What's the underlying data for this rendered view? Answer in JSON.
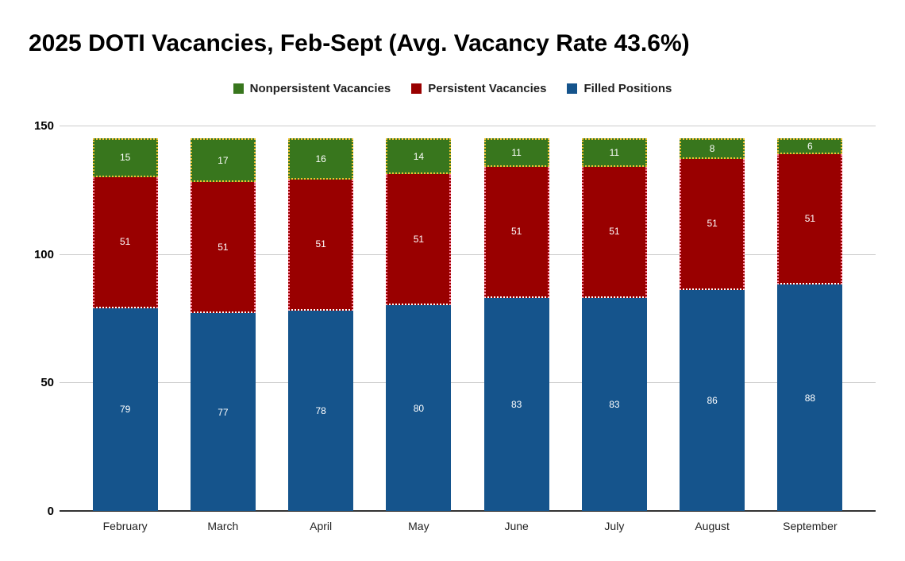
{
  "title": "2025 DOTI Vacancies, Feb-Sept (Avg. Vacancy Rate 43.6%)",
  "legend": {
    "position": "top",
    "items": [
      {
        "label": "Nonpersistent Vacancies",
        "color": "#38761d"
      },
      {
        "label": "Persistent Vacancies",
        "color": "#990000"
      },
      {
        "label": "Filled Positions",
        "color": "#15548c"
      }
    ]
  },
  "chart_data": {
    "type": "bar",
    "stacked": true,
    "title": "2025 DOTI Vacancies, Feb-Sept (Avg. Vacancy Rate 43.6%)",
    "categories": [
      "February",
      "March",
      "April",
      "May",
      "June",
      "July",
      "August",
      "September"
    ],
    "series": [
      {
        "name": "Filled Positions",
        "color": "#15548c",
        "label_color": "#ffffff",
        "values": [
          79,
          77,
          78,
          80,
          83,
          83,
          86,
          88
        ]
      },
      {
        "name": "Persistent Vacancies",
        "color": "#990000",
        "border_side_color": "#ff8aa2",
        "border_bottom_color": "#ffffff",
        "label_color": "#ffffff",
        "values": [
          51,
          51,
          51,
          51,
          51,
          51,
          51,
          51
        ]
      },
      {
        "name": "Nonpersistent Vacancies",
        "color": "#38761d",
        "border_all_color": "#f1c232",
        "label_color": "#ffffff",
        "values": [
          15,
          17,
          16,
          14,
          11,
          11,
          8,
          6
        ]
      }
    ],
    "bar_totals": [
      145,
      145,
      145,
      145,
      145,
      145,
      145,
      145
    ],
    "xlabel": "",
    "ylabel": "",
    "ylim": [
      0,
      150
    ],
    "yticks": [
      0,
      50,
      100,
      150
    ],
    "grid": true,
    "legend_position": "top",
    "colors": {
      "grid": "#cccccc",
      "axis": "#333333",
      "y_tick_label": "#000000",
      "category_label": "#222222",
      "background": "#ffffff"
    }
  }
}
